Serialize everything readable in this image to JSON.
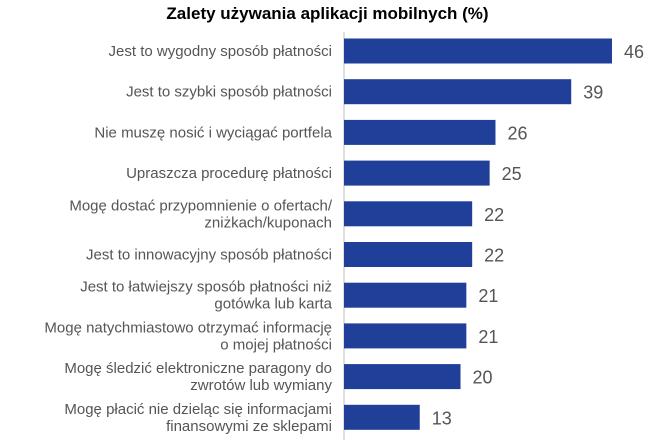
{
  "chart_data": {
    "type": "bar",
    "orientation": "horizontal",
    "title": "Zalety używania aplikacji mobilnych (%)",
    "categories": [
      [
        "Jest to wygodny sposób płatności"
      ],
      [
        "Jest to szybki sposób płatności"
      ],
      [
        "Nie muszę nosić i wyciągać portfela"
      ],
      [
        "Upraszcza procedurę płatności"
      ],
      [
        "Mogę dostać przypomnienie o ofertach/",
        "zniżkach/kuponach"
      ],
      [
        "Jest to innowacyjny sposób płatności"
      ],
      [
        "Jest to łatwiejszy sposób płatności niż",
        "gotówka lub karta"
      ],
      [
        "Mogę natychmiastowo otrzymać informację",
        "o mojej płatności"
      ],
      [
        "Mogę śledzić elektroniczne paragony do",
        "zwrotów lub wymiany"
      ],
      [
        "Mogę płacić nie dzieląc się informacjami",
        "finansowymi ze sklepami"
      ]
    ],
    "values": [
      46,
      39,
      26,
      25,
      22,
      22,
      21,
      21,
      20,
      13
    ],
    "bar_color": "#1f3f99",
    "grid": false,
    "legend": "none",
    "xlim": [
      0,
      46
    ]
  }
}
